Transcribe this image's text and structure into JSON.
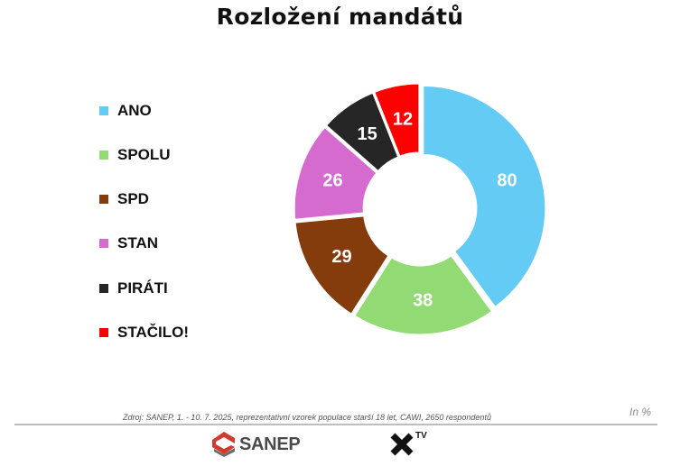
{
  "chart_data": {
    "type": "pie",
    "title": "Rozložení mandátů",
    "categories": [
      "ANO",
      "SPOLU",
      "SPD",
      "STAN",
      "PIRÁTI",
      "STAČILO!"
    ],
    "values": [
      80,
      38,
      29,
      26,
      15,
      12
    ],
    "colors": [
      "#64CBF5",
      "#92DB74",
      "#843C0C",
      "#D56BCE",
      "#262626",
      "#FF0000"
    ],
    "legend_position": "left"
  },
  "footer": {
    "unit": "In %",
    "source": "Zdroj: SANEP, 1. - 10. 7. 2025, reprezentativní vzorek populace starší 18 let, CAWI, 2650 respondentů",
    "logo_sanep": "SANEP",
    "logo_xtv": "TV"
  }
}
